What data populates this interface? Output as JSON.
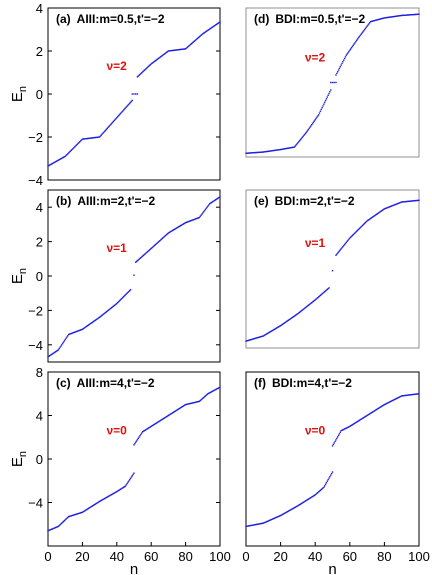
{
  "figure": {
    "marker_color": "#1f1fe0",
    "annotation_color": "#e01010"
  },
  "chart_data": [
    {
      "type": "scatter",
      "panel": "(a)",
      "title": "AIII:m=0.5,t'=−2",
      "annotation": "ν=2",
      "ylabel": "E_n",
      "xlabel": "",
      "xlim": [
        0,
        100
      ],
      "ylim": [
        -4,
        4
      ],
      "xticks": [],
      "yticks": [
        4,
        2,
        0,
        -2,
        -4
      ],
      "series": [
        {
          "band": "lower",
          "x": [
            0,
            10,
            20,
            30,
            40,
            49
          ],
          "y": [
            -3.35,
            -2.9,
            -2.1,
            -2.0,
            -1.1,
            -0.3
          ]
        },
        {
          "band": "edge",
          "x": [
            49,
            50,
            51,
            52
          ],
          "y": [
            0.0,
            0.0,
            0.0,
            0.0
          ]
        },
        {
          "band": "upper",
          "x": [
            52,
            60,
            70,
            80,
            90,
            100
          ],
          "y": [
            0.8,
            1.4,
            2.0,
            2.1,
            2.8,
            3.35
          ]
        }
      ]
    },
    {
      "type": "scatter",
      "panel": "(d)",
      "title": "BDI:m=0.5,t'=−2",
      "annotation": "ν=2",
      "ylabel": "",
      "xlabel": "",
      "xlim": [
        0,
        100
      ],
      "ylim": [
        -3,
        3
      ],
      "xticks": [],
      "yticks": [],
      "series": [
        {
          "band": "lower",
          "x": [
            0,
            10,
            20,
            28,
            35,
            42,
            49
          ],
          "y": [
            -2.85,
            -2.8,
            -2.7,
            -2.6,
            -2.0,
            -1.3,
            -0.3
          ]
        },
        {
          "band": "edge",
          "x": [
            49,
            50,
            51,
            52
          ],
          "y": [
            0.0,
            0.0,
            0.0,
            0.0
          ]
        },
        {
          "band": "upper",
          "x": [
            52,
            58,
            65,
            72,
            80,
            90,
            100
          ],
          "y": [
            0.3,
            1.1,
            1.8,
            2.45,
            2.6,
            2.7,
            2.75
          ]
        }
      ]
    },
    {
      "type": "scatter",
      "panel": "(b)",
      "title": "AIII:m=2,t'=−2",
      "annotation": "ν=1",
      "ylabel": "E_n",
      "xlabel": "",
      "xlim": [
        0,
        100
      ],
      "ylim": [
        -5,
        5
      ],
      "xticks": [],
      "yticks": [
        4,
        2,
        0,
        -2,
        -4
      ],
      "series": [
        {
          "band": "lower",
          "x": [
            0,
            6,
            12,
            20,
            30,
            40,
            48
          ],
          "y": [
            -4.7,
            -4.3,
            -3.4,
            -3.1,
            -2.4,
            -1.6,
            -0.8
          ]
        },
        {
          "band": "edge",
          "x": [
            50
          ],
          "y": [
            0.05
          ]
        },
        {
          "band": "upper",
          "x": [
            51,
            60,
            70,
            80,
            88,
            94,
            100
          ],
          "y": [
            0.8,
            1.6,
            2.5,
            3.1,
            3.4,
            4.2,
            4.6
          ]
        }
      ]
    },
    {
      "type": "scatter",
      "panel": "(e)",
      "title": "BDI:m=2,t'=−2",
      "annotation": "ν=1",
      "ylabel": "",
      "xlabel": "",
      "xlim": [
        0,
        100
      ],
      "ylim": [
        -4.6,
        4.6
      ],
      "xticks": [],
      "yticks": [],
      "series": [
        {
          "band": "lower",
          "x": [
            0,
            10,
            20,
            30,
            40,
            48
          ],
          "y": [
            -4.2,
            -3.9,
            -3.3,
            -2.6,
            -1.8,
            -1.1
          ]
        },
        {
          "band": "edge",
          "x": [
            50
          ],
          "y": [
            -0.1
          ]
        },
        {
          "band": "upper",
          "x": [
            52,
            60,
            70,
            80,
            90,
            100
          ],
          "y": [
            0.8,
            1.8,
            2.8,
            3.5,
            3.9,
            4.0
          ]
        }
      ]
    },
    {
      "type": "scatter",
      "panel": "(c)",
      "title": "AIII:m=4,t'=−2",
      "annotation": "ν=0",
      "ylabel": "E_n",
      "xlabel": "n",
      "xlim": [
        0,
        100
      ],
      "ylim": [
        -8,
        8
      ],
      "xticks": [
        0,
        20,
        40,
        60,
        80,
        100
      ],
      "yticks": [
        8,
        4,
        0,
        -4
      ],
      "series": [
        {
          "band": "lower",
          "x": [
            0,
            6,
            12,
            20,
            30,
            40,
            45,
            50
          ],
          "y": [
            -6.6,
            -6.2,
            -5.3,
            -4.9,
            -3.9,
            -3.0,
            -2.5,
            -1.3
          ]
        },
        {
          "band": "upper",
          "x": [
            50,
            55,
            60,
            70,
            80,
            88,
            93,
            100
          ],
          "y": [
            1.3,
            2.5,
            3.0,
            4.0,
            5.0,
            5.3,
            6.0,
            6.6
          ]
        }
      ]
    },
    {
      "type": "scatter",
      "panel": "(f)",
      "title": "BDI:m=4,t'=−2",
      "annotation": "ν=0",
      "ylabel": "",
      "xlabel": "n",
      "xlim": [
        0,
        100
      ],
      "ylim": [
        -8,
        8
      ],
      "xticks": [
        0,
        20,
        40,
        60,
        80,
        100
      ],
      "yticks": [],
      "series": [
        {
          "band": "lower",
          "x": [
            0,
            10,
            20,
            30,
            40,
            45,
            50
          ],
          "y": [
            -6.2,
            -5.9,
            -5.2,
            -4.3,
            -3.3,
            -2.6,
            -1.2
          ]
        },
        {
          "band": "upper",
          "x": [
            50,
            55,
            60,
            70,
            80,
            90,
            100
          ],
          "y": [
            1.2,
            2.6,
            3.0,
            4.0,
            5.0,
            5.8,
            6.0
          ]
        }
      ]
    }
  ]
}
